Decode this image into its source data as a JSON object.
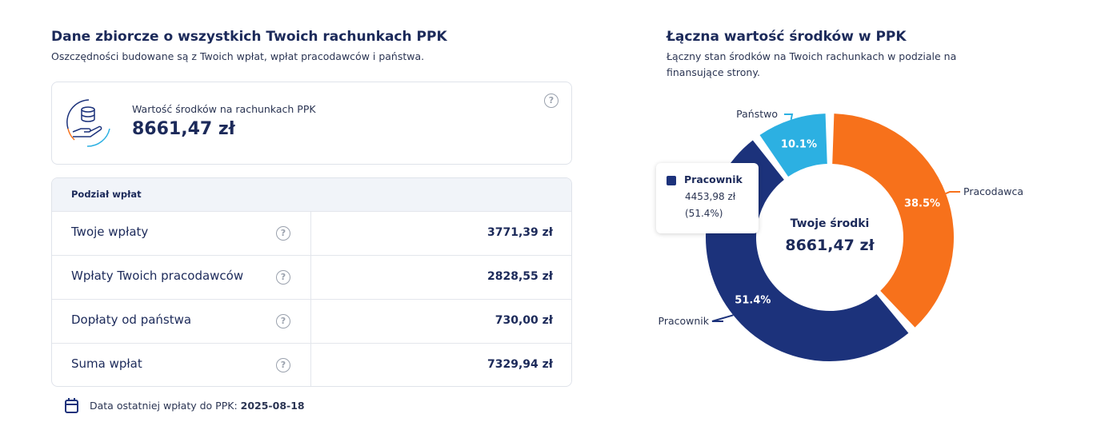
{
  "left": {
    "title": "Dane zbiorcze o wszystkich Twoich rachunkach PPK",
    "subtitle": "Oszczędności budowane są z Twoich wpłat, wpłat pracodawców i państwa.",
    "summary": {
      "label": "Wartość środków na rachunkach PPK",
      "value": "8661,47 zł"
    },
    "table": {
      "header": "Podział wpłat",
      "rows": [
        [
          "Twoje wpłaty",
          "3771,39 zł"
        ],
        [
          "Wpłaty Twoich pracodawców",
          "2828,55 zł"
        ],
        [
          "Dopłaty od państwa",
          "730,00 zł"
        ],
        [
          "Suma wpłat",
          "7329,94 zł"
        ]
      ]
    },
    "last_payment": {
      "label": "Data ostatniej wpłaty do PPK:",
      "date": "2025-08-18"
    }
  },
  "right": {
    "title": "Łączna wartość środków w PPK",
    "subtitle": "Łączny stan środków na Twoich rachunkach w podziale na finansujące strony.",
    "center_label": "Twoje środki",
    "center_value": "8661,47 zł",
    "segments": [
      {
        "name": "Pracodawca",
        "color": "#f7711b",
        "value": 38.5,
        "value_label": "38.5%"
      },
      {
        "name": "Pracownik",
        "color": "#1c327b",
        "value": 51.4,
        "value_label": "51.4%"
      },
      {
        "name": "Państwo",
        "color": "#2cb0e2",
        "value": 10.1,
        "value_label": "10.1%"
      }
    ],
    "tooltip": {
      "name": "Pracownik",
      "amount": "4453,98 zł",
      "share": "(51.4%)"
    }
  }
}
